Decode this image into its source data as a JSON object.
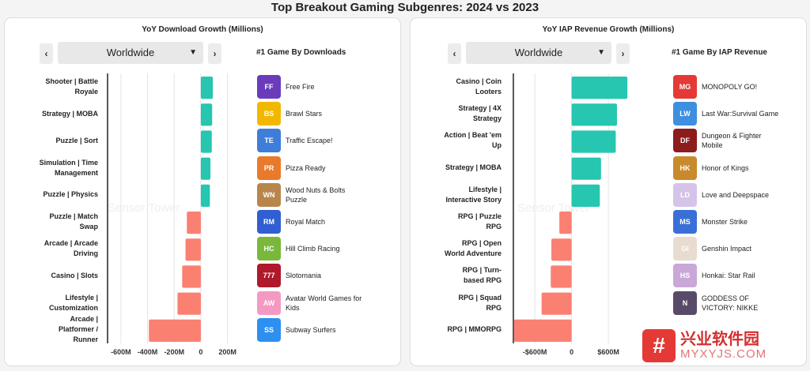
{
  "title": "Top Breakout Gaming Subgenres: 2024 vs 2023",
  "colors": {
    "positive": "#26c6b0",
    "negative": "#fa8072"
  },
  "chart_data": [
    {
      "type": "bar",
      "title": "YoY Download Growth (Millions)",
      "region": "Worldwide",
      "games_header": "#1  Game By Downloads",
      "categories": [
        "Shooter | Battle Royale",
        "Strategy | MOBA",
        "Puzzle | Sort",
        "Simulation | Time Management",
        "Puzzle | Physics",
        "Puzzle | Match Swap",
        "Arcade | Arcade Driving",
        "Casino | Slots",
        "Lifestyle | Customization",
        "Arcade | Platformer / Runner"
      ],
      "values": [
        90,
        85,
        82,
        72,
        68,
        -105,
        -115,
        -140,
        -175,
        -390
      ],
      "xlim": [
        -700,
        250
      ],
      "ticks": [
        -600,
        -400,
        -200,
        0,
        200
      ],
      "tick_labels": [
        "-600M",
        "-400M",
        "-200M",
        "0",
        "200M"
      ],
      "top_games": [
        "Free Fire",
        "Brawl Stars",
        "Traffic Escape!",
        "Pizza Ready",
        "Wood Nuts & Bolts Puzzle",
        "Royal Match",
        "Hill Climb Racing",
        "Slotomania",
        "Avatar World Games for Kids",
        "Subway Surfers"
      ],
      "icon_colors": [
        "#6a3cbc",
        "#f2b800",
        "#3f7ed8",
        "#e87a2a",
        "#b8864b",
        "#2f5fd0",
        "#79b83b",
        "#b0182b",
        "#f49ac2",
        "#2d8ff0"
      ],
      "icon_glyphs": [
        "FF",
        "BS",
        "TE",
        "PR",
        "WN",
        "RM",
        "HC",
        "777",
        "AW",
        "SS"
      ]
    },
    {
      "type": "bar",
      "title": "YoY IAP Revenue Growth (Millions)",
      "region": "Worldwide",
      "games_header": "#1  Game By IAP Revenue",
      "categories": [
        "Casino | Coin Looters",
        "Strategy | 4X Strategy",
        "Action | Beat 'em Up",
        "Strategy | MOBA",
        "Lifestyle | Interactive Story",
        "RPG | Puzzle RPG",
        "RPG | Open World Adventure",
        "RPG | Turn-based RPG",
        "RPG | Squad RPG",
        "RPG | MMORPG"
      ],
      "values": [
        910,
        740,
        720,
        480,
        460,
        -200,
        -330,
        -340,
        -490,
        -940
      ],
      "xlim": [
        -950,
        1050
      ],
      "ticks": [
        -600,
        0,
        600
      ],
      "tick_labels": [
        "-$600M",
        "0",
        "$600M"
      ],
      "top_games": [
        "MONOPOLY GO!",
        "Last War:Survival Game",
        "Dungeon & Fighter Mobile",
        "Honor of Kings",
        "Love and Deepspace",
        "Monster Strike",
        "Genshin Impact",
        "Honkai: Star Rail",
        "GODDESS OF VICTORY: NIKKE",
        ""
      ],
      "icon_colors": [
        "#e53935",
        "#3f8fe0",
        "#8d1c1c",
        "#c98a2b",
        "#d6c3e8",
        "#3a6fd8",
        "#e8dcd0",
        "#c9a8d8",
        "#5a4a6a",
        "#ffffff"
      ],
      "icon_glyphs": [
        "MG",
        "LW",
        "DF",
        "HK",
        "LD",
        "MS",
        "GI",
        "HS",
        "N",
        ""
      ]
    }
  ],
  "watermark": "Sensor Tower",
  "logo": {
    "cn": "兴业软件园",
    "url": "MYXYJS.COM",
    "mark": "#"
  }
}
